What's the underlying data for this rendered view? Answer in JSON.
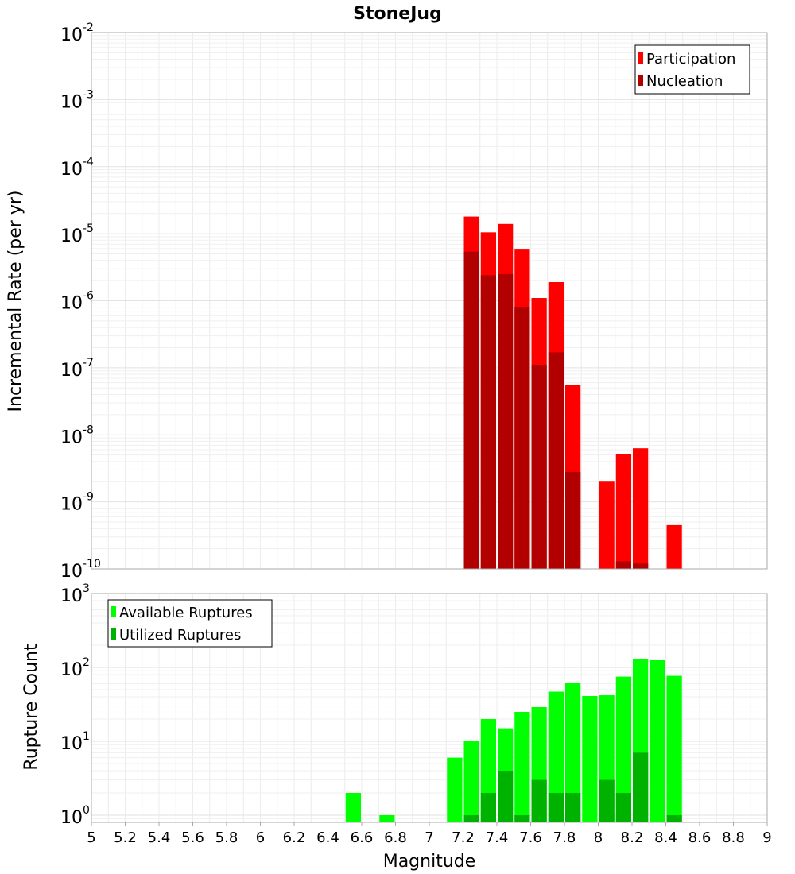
{
  "chart_data": [
    {
      "type": "bar",
      "title": "StoneJug",
      "xlabel": "",
      "ylabel": "Incremental Rate (per yr)",
      "yscale": "log",
      "ylim": [
        1e-10,
        0.01
      ],
      "xlim": [
        5,
        9
      ],
      "grid": true,
      "bar_width": 0.1,
      "legend": {
        "placement": "top-right",
        "entries": [
          "Participation",
          "Nucleation"
        ]
      },
      "colors": {
        "Participation": "#ff0000",
        "Nucleation": "#b20000"
      },
      "yticks": [
        {
          "base": "10",
          "exp": "-10",
          "value": 1e-10
        },
        {
          "base": "10",
          "exp": "-9",
          "value": 1e-09
        },
        {
          "base": "10",
          "exp": "-8",
          "value": 1e-08
        },
        {
          "base": "10",
          "exp": "-7",
          "value": 1e-07
        },
        {
          "base": "10",
          "exp": "-6",
          "value": 1e-06
        },
        {
          "base": "10",
          "exp": "-5",
          "value": 1e-05
        },
        {
          "base": "10",
          "exp": "-4",
          "value": 0.0001
        },
        {
          "base": "10",
          "exp": "-3",
          "value": 0.001
        },
        {
          "base": "10",
          "exp": "-2",
          "value": 0.01
        }
      ],
      "x": [
        7.25,
        7.35,
        7.45,
        7.55,
        7.65,
        7.75,
        7.85,
        8.05,
        8.15,
        8.25,
        8.45
      ],
      "series": [
        {
          "name": "Participation",
          "values": [
            1.8e-05,
            1.05e-05,
            1.4e-05,
            5.8e-06,
            1.1e-06,
            1.9e-06,
            5.5e-08,
            2e-09,
            5.2e-09,
            6.3e-09,
            4.5e-10
          ]
        },
        {
          "name": "Nucleation",
          "values": [
            5.4e-06,
            2.4e-06,
            2.5e-06,
            8e-07,
            1.1e-07,
            1.7e-07,
            2.8e-09,
            null,
            1.3e-10,
            1.2e-10,
            null
          ]
        }
      ]
    },
    {
      "type": "bar",
      "title": "",
      "xlabel": "Magnitude",
      "ylabel": "Rupture Count",
      "yscale": "log",
      "ylim": [
        0.8,
        1000
      ],
      "xlim": [
        5,
        9
      ],
      "grid": true,
      "bar_width": 0.1,
      "legend": {
        "placement": "top-left",
        "entries": [
          "Available Ruptures",
          "Utilized Ruptures"
        ]
      },
      "colors": {
        "Available Ruptures": "#00ff00",
        "Utilized Ruptures": "#00b200"
      },
      "yticks": [
        {
          "base": "10",
          "exp": "0",
          "value": 1
        },
        {
          "base": "10",
          "exp": "1",
          "value": 10
        },
        {
          "base": "10",
          "exp": "2",
          "value": 100
        },
        {
          "base": "10",
          "exp": "3",
          "value": 1000
        }
      ],
      "xticks": [
        "5",
        "5.2",
        "5.4",
        "5.6",
        "5.8",
        "6",
        "6.2",
        "6.4",
        "6.6",
        "6.8",
        "7",
        "7.2",
        "7.4",
        "7.6",
        "7.8",
        "8",
        "8.2",
        "8.4",
        "8.6",
        "8.8",
        "9"
      ],
      "x": [
        6.55,
        6.75,
        7.15,
        7.25,
        7.35,
        7.45,
        7.55,
        7.65,
        7.75,
        7.85,
        7.95,
        8.05,
        8.15,
        8.25,
        8.35,
        8.45
      ],
      "series": [
        {
          "name": "Available Ruptures",
          "values": [
            2,
            1,
            6,
            10,
            20,
            15,
            25,
            29,
            47,
            61,
            41,
            42,
            75,
            130,
            125,
            77
          ]
        },
        {
          "name": "Utilized Ruptures",
          "values": [
            null,
            null,
            null,
            1,
            2,
            4,
            1,
            3,
            2,
            2,
            null,
            3,
            2,
            7,
            null,
            1
          ]
        }
      ]
    }
  ]
}
